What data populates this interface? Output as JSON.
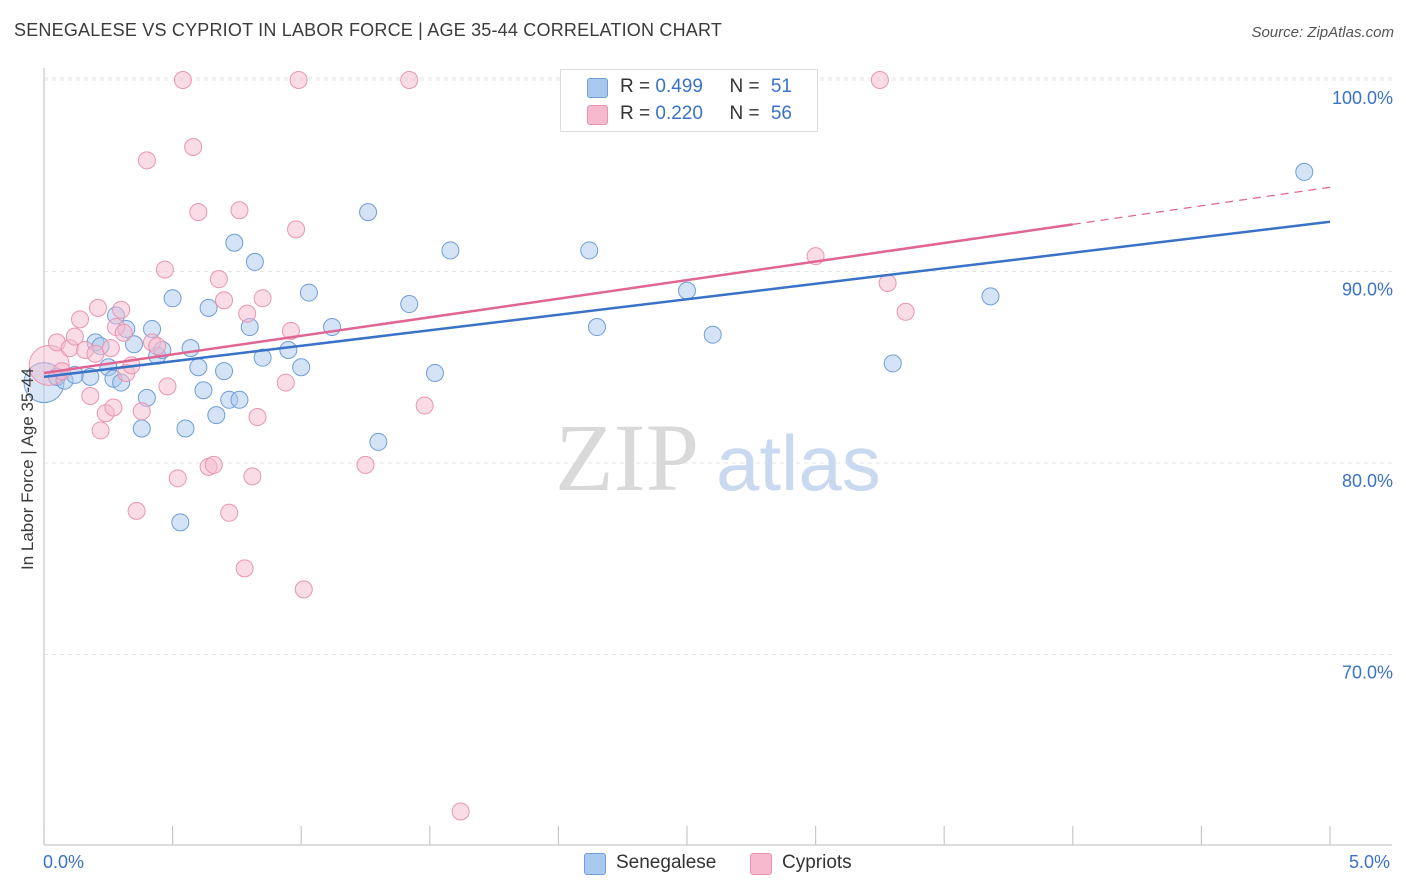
{
  "title": "SENEGALESE VS CYPRIOT IN LABOR FORCE | AGE 35-44 CORRELATION CHART",
  "source": "Source: ZipAtlas.com",
  "watermark": {
    "zip": "ZIP",
    "atlas": "atlas"
  },
  "legend": {
    "rows": [
      {
        "r_label": "R = ",
        "r_value": "0.499",
        "n_label": "N = ",
        "n_value": "51"
      },
      {
        "r_label": "R = ",
        "r_value": "0.220",
        "n_label": "N = ",
        "n_value": "56"
      }
    ]
  },
  "bottom_legend": [
    "Senegalese",
    "Cypriots"
  ],
  "colors": {
    "blue_fill": "#a9c8ee",
    "blue_stroke": "#6f9ed9",
    "blue_line": "#3a72c7",
    "pink_fill": "#f6b9cd",
    "pink_stroke": "#e995b1",
    "pink_line": "#e06593",
    "axis_text": "#3a72c7",
    "grid": "#e5e5e5"
  },
  "chart_data": {
    "type": "scatter",
    "title": "SENEGALESE VS CYPRIOT IN LABOR FORCE | AGE 35-44 CORRELATION CHART",
    "xlabel": "",
    "ylabel": "In Labor Force | Age 35-44",
    "xlim": [
      0,
      5
    ],
    "ylim": [
      61,
      101
    ],
    "x_ticks": [
      {
        "value": 0,
        "label": "0.0%"
      },
      {
        "value": 5,
        "label": "5.0%"
      }
    ],
    "y_ticks": [
      {
        "value": 100,
        "label": "100.0%"
      },
      {
        "value": 90,
        "label": "90.0%"
      },
      {
        "value": 80,
        "label": "80.0%"
      },
      {
        "value": 70,
        "label": "70.0%"
      }
    ],
    "grid": true,
    "legend_position": "top-center",
    "series": [
      {
        "name": "Senegalese",
        "r": 0.499,
        "n": 51,
        "trend": {
          "x": [
            0.0,
            5.0
          ],
          "y": [
            84.5,
            92.6
          ],
          "dashed_from": null
        },
        "points": [
          [
            0.0,
            84.2,
            "big"
          ],
          [
            0.05,
            84.5
          ],
          [
            0.08,
            84.3
          ],
          [
            0.12,
            84.6
          ],
          [
            0.18,
            84.5
          ],
          [
            0.2,
            86.3
          ],
          [
            0.22,
            86.1
          ],
          [
            0.25,
            85.0
          ],
          [
            0.27,
            84.4
          ],
          [
            0.28,
            87.7
          ],
          [
            0.3,
            84.2
          ],
          [
            0.32,
            87.0
          ],
          [
            0.35,
            86.2
          ],
          [
            0.38,
            81.8
          ],
          [
            0.4,
            83.4
          ],
          [
            0.42,
            87.0
          ],
          [
            0.44,
            85.6
          ],
          [
            0.46,
            85.9
          ],
          [
            0.5,
            88.6
          ],
          [
            0.53,
            76.9
          ],
          [
            0.55,
            81.8
          ],
          [
            0.57,
            86.0
          ],
          [
            0.6,
            85.0
          ],
          [
            0.62,
            83.8
          ],
          [
            0.64,
            88.1
          ],
          [
            0.67,
            82.5
          ],
          [
            0.7,
            84.8
          ],
          [
            0.72,
            83.3
          ],
          [
            0.74,
            91.5
          ],
          [
            0.76,
            83.3
          ],
          [
            0.8,
            87.1
          ],
          [
            0.82,
            90.5
          ],
          [
            0.85,
            85.5
          ],
          [
            0.95,
            85.9
          ],
          [
            1.0,
            85.0
          ],
          [
            1.03,
            88.9
          ],
          [
            1.12,
            87.1
          ],
          [
            1.26,
            93.1
          ],
          [
            1.3,
            81.1
          ],
          [
            1.42,
            88.3
          ],
          [
            1.52,
            84.7
          ],
          [
            1.58,
            91.1
          ],
          [
            2.12,
            91.1
          ],
          [
            2.15,
            87.1
          ],
          [
            2.5,
            89.0
          ],
          [
            2.6,
            86.7
          ],
          [
            3.3,
            85.2
          ],
          [
            3.68,
            88.7
          ],
          [
            4.9,
            95.2
          ]
        ]
      },
      {
        "name": "Cypriots",
        "r": 0.22,
        "n": 56,
        "trend": {
          "x": [
            0.0,
            5.0
          ],
          "y": [
            84.7,
            94.4
          ],
          "dashed_from": 4.0
        },
        "points": [
          [
            0.02,
            85.1,
            "big"
          ],
          [
            0.05,
            86.3
          ],
          [
            0.07,
            84.8
          ],
          [
            0.1,
            86.0
          ],
          [
            0.12,
            86.6
          ],
          [
            0.14,
            87.5
          ],
          [
            0.16,
            85.9
          ],
          [
            0.18,
            83.5
          ],
          [
            0.2,
            85.7
          ],
          [
            0.21,
            88.1
          ],
          [
            0.22,
            81.7
          ],
          [
            0.24,
            82.6
          ],
          [
            0.26,
            86.0
          ],
          [
            0.27,
            82.9
          ],
          [
            0.28,
            87.1
          ],
          [
            0.3,
            88.0
          ],
          [
            0.31,
            86.8
          ],
          [
            0.32,
            84.7
          ],
          [
            0.34,
            85.1
          ],
          [
            0.36,
            77.5
          ],
          [
            0.38,
            82.7
          ],
          [
            0.4,
            95.8
          ],
          [
            0.42,
            86.3
          ],
          [
            0.44,
            86.1
          ],
          [
            0.47,
            90.1
          ],
          [
            0.48,
            84.0
          ],
          [
            0.52,
            79.2
          ],
          [
            0.54,
            100.0
          ],
          [
            0.58,
            96.5
          ],
          [
            0.6,
            93.1
          ],
          [
            0.64,
            79.8
          ],
          [
            0.66,
            79.9
          ],
          [
            0.68,
            89.6
          ],
          [
            0.7,
            88.5
          ],
          [
            0.72,
            77.4
          ],
          [
            0.76,
            93.2
          ],
          [
            0.78,
            74.5
          ],
          [
            0.79,
            87.8
          ],
          [
            0.81,
            79.3
          ],
          [
            0.83,
            82.4
          ],
          [
            0.85,
            88.6
          ],
          [
            0.94,
            84.2
          ],
          [
            0.96,
            86.9
          ],
          [
            0.98,
            92.2
          ],
          [
            0.99,
            100.0
          ],
          [
            1.01,
            73.4
          ],
          [
            1.25,
            79.9
          ],
          [
            1.42,
            100.0
          ],
          [
            1.48,
            83.0
          ],
          [
            1.62,
            61.8
          ],
          [
            3.0,
            90.8
          ],
          [
            3.25,
            100.0
          ],
          [
            3.28,
            89.4
          ],
          [
            3.35,
            87.9
          ]
        ]
      }
    ]
  }
}
